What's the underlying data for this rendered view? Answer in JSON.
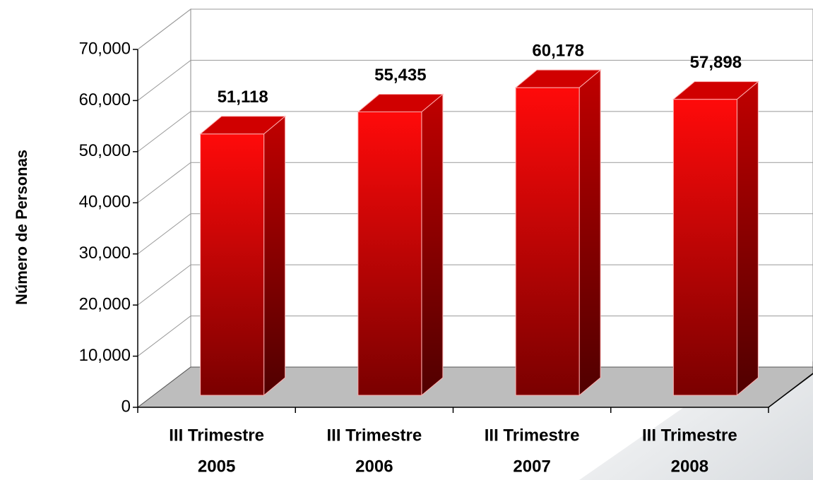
{
  "chart_data": {
    "type": "bar3d",
    "y_axis_label": "Número de Personas",
    "categories": [
      [
        "III Trimestre",
        "2005"
      ],
      [
        "III Trimestre",
        "2006"
      ],
      [
        "III Trimestre",
        "2007"
      ],
      [
        "III Trimestre",
        "2008"
      ]
    ],
    "values": [
      51118,
      55435,
      60178,
      57898
    ],
    "value_labels": [
      "51,118",
      "55,435",
      "60,178",
      "57,898"
    ],
    "color": "#ff0000",
    "ylim": [
      0,
      70000
    ],
    "yticks": [
      0,
      {
        "value": 10000,
        "label": "10,000"
      },
      {
        "value": 20000,
        "label": "20,000"
      },
      {
        "value": 30000,
        "label": "30,000"
      },
      {
        "value": 40000,
        "label": "40,000"
      },
      {
        "value": 50000,
        "label": "50,000"
      },
      {
        "value": 60000,
        "label": "60,000"
      },
      {
        "value": 70000,
        "label": "70,000"
      }
    ],
    "grid": true
  }
}
